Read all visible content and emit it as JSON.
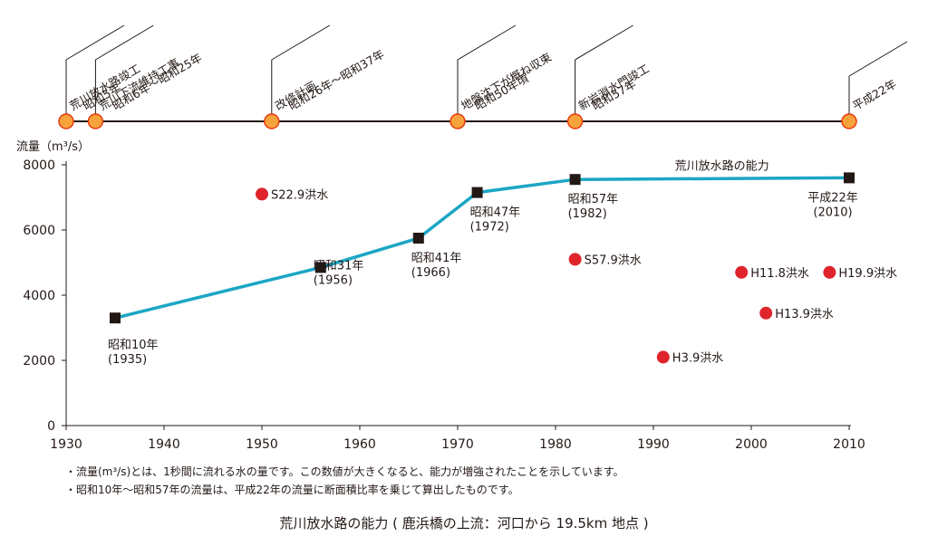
{
  "colors": {
    "timeline_line": "#231815",
    "milestone_fill": "#f7a33c",
    "milestone_stroke": "#e8380d",
    "capacity_line": "#1ba6c4",
    "capacity_marker": "#231815",
    "flood_point": "#e0242c"
  },
  "timeline": [
    {
      "year": 1930,
      "lines": [
        "昭和5年",
        "荒川放水路竣工"
      ]
    },
    {
      "year": 1933,
      "lines": [
        "昭和6年～昭和25年",
        "荒川下流維持工事"
      ]
    },
    {
      "year": 1951,
      "lines": [
        "昭和26年～昭和37年",
        "改修計画"
      ]
    },
    {
      "year": 1970,
      "lines": [
        "昭和50年頃",
        "地盤沈下が概ね収束"
      ]
    },
    {
      "year": 1982,
      "lines": [
        "昭和57年",
        "新岩淵水門竣工"
      ]
    },
    {
      "year": 2010,
      "lines": [
        "平成22年"
      ]
    }
  ],
  "chart_data": {
    "type": "line",
    "ylabel": "流量（m³/s）",
    "xlim": [
      1930,
      2010
    ],
    "ylim": [
      0,
      8000
    ],
    "x_ticks": [
      "1930",
      "1940",
      "1950",
      "1960",
      "1970",
      "1980",
      "1990",
      "2000",
      "2010"
    ],
    "y_ticks": [
      "0",
      "2000",
      "4000",
      "6000",
      "8000"
    ],
    "grid": false,
    "series": [
      {
        "name": "荒川放水路の能力",
        "points": [
          {
            "x": 1935,
            "y": 3300,
            "label": [
              "昭和10年",
              "(1935)"
            ]
          },
          {
            "x": 1956,
            "y": 4850,
            "label": [
              "昭和31年",
              "(1956)"
            ]
          },
          {
            "x": 1966,
            "y": 5750,
            "label": [
              "昭和41年",
              "(1966)"
            ]
          },
          {
            "x": 1972,
            "y": 7150,
            "label": [
              "昭和47年",
              "(1972)"
            ]
          },
          {
            "x": 1982,
            "y": 7550,
            "label": [
              "昭和57年",
              "(1982)"
            ]
          },
          {
            "x": 2010,
            "y": 7600,
            "label": [
              "平成22年",
              "(2010)"
            ]
          }
        ]
      },
      {
        "name": "洪水",
        "type": "scatter",
        "points": [
          {
            "x": 1950,
            "y": 7100,
            "label": "S22.9洪水"
          },
          {
            "x": 1982,
            "y": 5100,
            "label": "S57.9洪水"
          },
          {
            "x": 1999,
            "y": 4700,
            "label": "H11.8洪水"
          },
          {
            "x": 2008,
            "y": 4700,
            "label": "H19.9洪水"
          },
          {
            "x": 2001.5,
            "y": 3450,
            "label": "H13.9洪水"
          },
          {
            "x": 1991,
            "y": 2100,
            "label": "H3.9洪水"
          }
        ]
      }
    ]
  },
  "notes": [
    "・流量(m³/s)とは、1秒間に流れる水の量です。この数値が大きくなると、能力が増強されたことを示しています。",
    "・昭和10年～昭和57年の流量は、平成22年の流量に断面積比率を乗じて算出したものです。"
  ],
  "caption": "荒川放水路の能力 ( 鹿浜橋の上流：河口から 19.5km 地点 )"
}
